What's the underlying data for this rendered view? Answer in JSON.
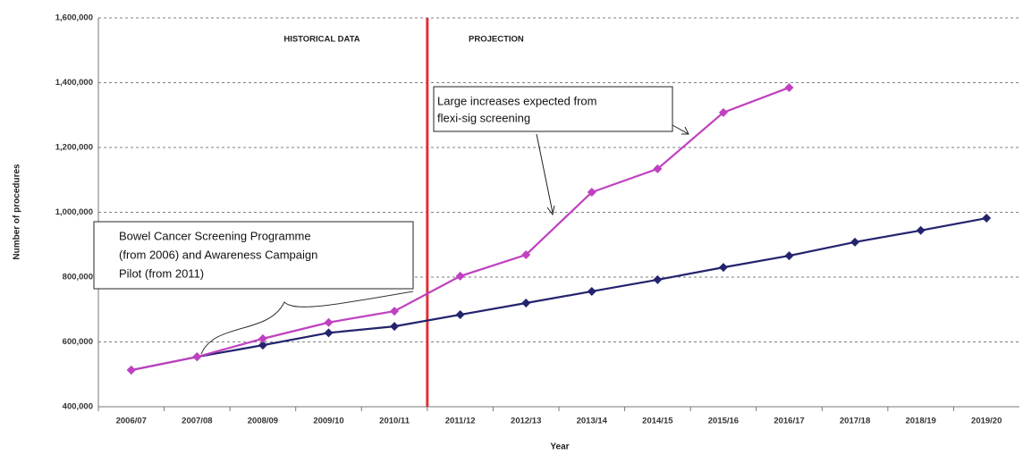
{
  "chart_data": {
    "type": "line",
    "x_label": "Year",
    "y_label": "Number of procedures",
    "region_labels": [
      "HISTORICAL DATA",
      "PROJECTION"
    ],
    "annotations": [
      [
        "Large increases expected from",
        "flexi-sig screening"
      ],
      [
        "Bowel Cancer Screening Programme",
        "(from 2006) and Awareness Campaign",
        "Pilot (from 2011)"
      ]
    ],
    "categories": [
      "2006/07",
      "2007/08",
      "2008/09",
      "2009/10",
      "2010/11",
      "2011/12",
      "2012/13",
      "2013/14",
      "2014/15",
      "2015/16",
      "2016/17",
      "2017/18",
      "2018/19",
      "2019/20"
    ],
    "series": [
      {
        "color": "#23236e",
        "values": [
          513000,
          554000,
          590000,
          628000,
          648000,
          684000,
          720000,
          756000,
          792000,
          830000,
          866000,
          908000,
          944000,
          982000
        ]
      },
      {
        "color": "#c040c0",
        "values": [
          513000,
          554000,
          610000,
          660000,
          695000,
          803000,
          869000,
          1062000,
          1134000,
          1308000,
          1385000,
          null,
          null,
          null
        ]
      }
    ],
    "ylim": [
      400000,
      1600000
    ],
    "yticks": [
      {
        "value": 400000,
        "label": "400,000"
      },
      {
        "value": 600000,
        "label": "600,000"
      },
      {
        "value": 800000,
        "label": "800,000"
      },
      {
        "value": 1000000,
        "label": "1,000,000"
      },
      {
        "value": 1200000,
        "label": "1,200,000"
      },
      {
        "value": 1400000,
        "label": "1,400,000"
      },
      {
        "value": 1600000,
        "label": "1,600,000"
      }
    ],
    "grid": true
  }
}
